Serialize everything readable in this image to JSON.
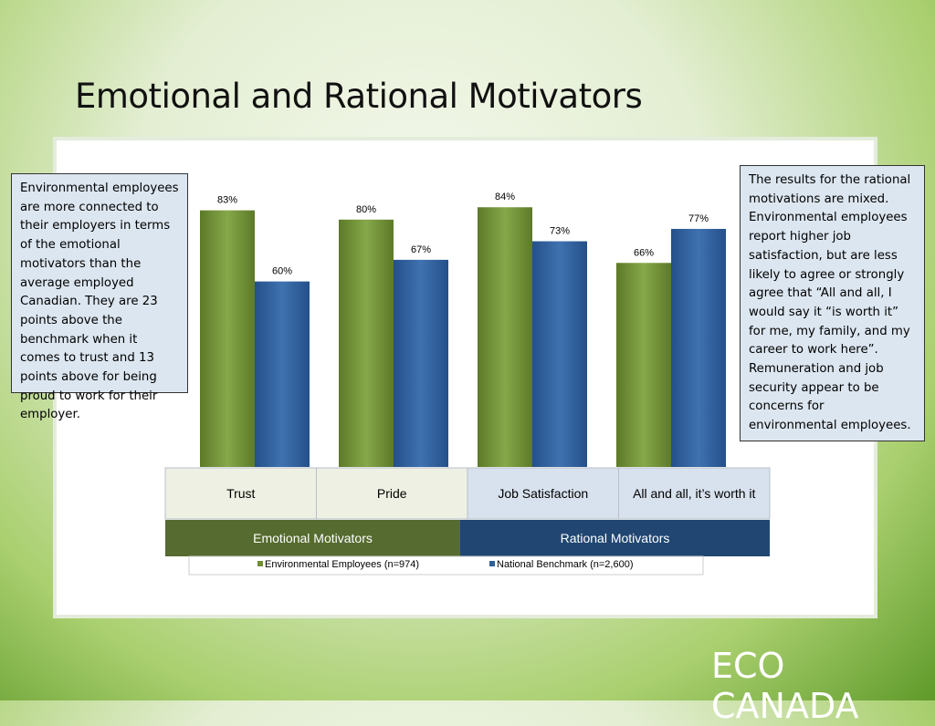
{
  "title": "Emotional and Rational Motivators",
  "left_note": "Environmental employees are more connected to their employers in terms of the emotional motivators than the average employed Canadian. They are 23 points above the benchmark when it comes to trust and 13 points above for being proud to work for their employer.",
  "right_note": "The results for the rational motivations are mixed. Environmental employees report higher job satisfaction, but are less likely to agree or strongly agree that “All and all, I would say it “is worth it” for me, my family, and my career to work here”. Remuneration and job security appear to be concerns for environmental employees.",
  "brand": "ECO CANADA",
  "chart_data": {
    "type": "bar",
    "categories": [
      "Trust",
      "Pride",
      "Job Satisfaction",
      "All and all, it’s worth it"
    ],
    "groups": [
      {
        "name": "Emotional Motivators",
        "span": 2,
        "color": "#566b2f"
      },
      {
        "name": "Rational Motivators",
        "span": 2,
        "color": "#214672"
      }
    ],
    "series": [
      {
        "name": "Environmental Employees (n=974)",
        "color": "#6f8f33",
        "values": [
          83,
          80,
          84,
          66
        ],
        "value_labels": [
          "83%",
          "80%",
          "84%",
          "66%"
        ]
      },
      {
        "name": "National Benchmark (n=2,600)",
        "color": "#2f5f99",
        "values": [
          60,
          67,
          73,
          77
        ],
        "value_labels": [
          "60%",
          "67%",
          "73%",
          "77%"
        ]
      }
    ],
    "ylim": [
      0,
      100
    ]
  }
}
